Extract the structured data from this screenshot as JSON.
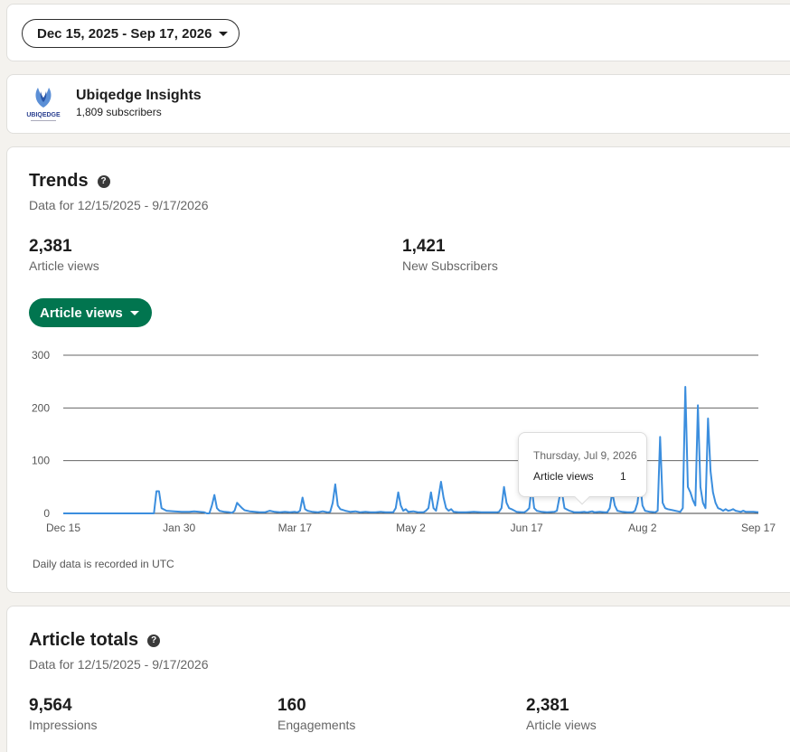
{
  "date_range": {
    "label": "Dec 15, 2025 - Sep 17, 2026"
  },
  "newsletter": {
    "name": "Ubiqedge Insights",
    "subscribers": "1,809 subscribers",
    "logo_text": "UBIQEDGE"
  },
  "trends": {
    "title": "Trends",
    "subtitle": "Data for 12/15/2025 - 9/17/2026",
    "metrics": [
      {
        "value": "2,381",
        "label": "Article views"
      },
      {
        "value": "1,421",
        "label": "New Subscribers"
      }
    ],
    "selector_label": "Article views",
    "note": "Daily data is recorded in UTC",
    "tooltip": {
      "date": "Thursday, Jul 9, 2026",
      "label": "Article views",
      "value": "1"
    }
  },
  "totals": {
    "title": "Article totals",
    "subtitle": "Data for 12/15/2025 - 9/17/2026",
    "metrics": [
      {
        "value": "9,564",
        "label": "Impressions"
      },
      {
        "value": "160",
        "label": "Engagements"
      },
      {
        "value": "2,381",
        "label": "Article views"
      }
    ]
  },
  "colors": {
    "accent_green": "#01754f",
    "line": "#3b8ede"
  },
  "chart_data": {
    "type": "line",
    "x_ticks": [
      "Dec 15",
      "Jan 30",
      "Mar 17",
      "May 2",
      "Jun 17",
      "Aug 2",
      "Sep 17"
    ],
    "y_ticks": [
      "0",
      "100",
      "200",
      "300"
    ],
    "ylim": [
      0,
      300
    ],
    "grid": true,
    "x_days": 276,
    "series": [
      {
        "points": [
          [
            0,
            0
          ],
          [
            10,
            0
          ],
          [
            20,
            0
          ],
          [
            25,
            0
          ],
          [
            30,
            0
          ],
          [
            36,
            0
          ],
          [
            37,
            42
          ],
          [
            38,
            42
          ],
          [
            39,
            10
          ],
          [
            41,
            5
          ],
          [
            44,
            4
          ],
          [
            47,
            3
          ],
          [
            50,
            3
          ],
          [
            52,
            4
          ],
          [
            54,
            3
          ],
          [
            56,
            2
          ],
          [
            57,
            0
          ],
          [
            58,
            0
          ],
          [
            59,
            15
          ],
          [
            60,
            35
          ],
          [
            61,
            10
          ],
          [
            62,
            5
          ],
          [
            64,
            3
          ],
          [
            66,
            2
          ],
          [
            67,
            1
          ],
          [
            68,
            5
          ],
          [
            69,
            20
          ],
          [
            70,
            15
          ],
          [
            71,
            10
          ],
          [
            72,
            6
          ],
          [
            74,
            4
          ],
          [
            76,
            3
          ],
          [
            78,
            2
          ],
          [
            80,
            2
          ],
          [
            82,
            5
          ],
          [
            84,
            3
          ],
          [
            86,
            2
          ],
          [
            88,
            3
          ],
          [
            90,
            2
          ],
          [
            92,
            3
          ],
          [
            93,
            2
          ],
          [
            94,
            5
          ],
          [
            95,
            30
          ],
          [
            96,
            8
          ],
          [
            97,
            5
          ],
          [
            99,
            3
          ],
          [
            101,
            2
          ],
          [
            103,
            4
          ],
          [
            105,
            2
          ],
          [
            106,
            3
          ],
          [
            107,
            20
          ],
          [
            108,
            55
          ],
          [
            109,
            15
          ],
          [
            110,
            8
          ],
          [
            112,
            5
          ],
          [
            114,
            3
          ],
          [
            116,
            4
          ],
          [
            118,
            2
          ],
          [
            120,
            3
          ],
          [
            122,
            2
          ],
          [
            124,
            2
          ],
          [
            126,
            3
          ],
          [
            128,
            2
          ],
          [
            131,
            2
          ],
          [
            132,
            10
          ],
          [
            133,
            40
          ],
          [
            134,
            15
          ],
          [
            135,
            5
          ],
          [
            136,
            8
          ],
          [
            137,
            3
          ],
          [
            139,
            4
          ],
          [
            141,
            2
          ],
          [
            143,
            2
          ],
          [
            144,
            5
          ],
          [
            145,
            10
          ],
          [
            146,
            40
          ],
          [
            147,
            10
          ],
          [
            148,
            5
          ],
          [
            149,
            30
          ],
          [
            150,
            60
          ],
          [
            151,
            30
          ],
          [
            152,
            10
          ],
          [
            153,
            5
          ],
          [
            154,
            8
          ],
          [
            155,
            3
          ],
          [
            157,
            2
          ],
          [
            160,
            2
          ],
          [
            163,
            3
          ],
          [
            166,
            2
          ],
          [
            169,
            2
          ],
          [
            172,
            2
          ],
          [
            173,
            3
          ],
          [
            174,
            10
          ],
          [
            175,
            50
          ],
          [
            176,
            20
          ],
          [
            177,
            10
          ],
          [
            178,
            8
          ],
          [
            180,
            3
          ],
          [
            182,
            2
          ],
          [
            183,
            2
          ],
          [
            184,
            5
          ],
          [
            185,
            10
          ],
          [
            186,
            50
          ],
          [
            187,
            10
          ],
          [
            188,
            5
          ],
          [
            190,
            3
          ],
          [
            192,
            2
          ],
          [
            195,
            3
          ],
          [
            196,
            5
          ],
          [
            197,
            30
          ],
          [
            198,
            40
          ],
          [
            199,
            10
          ],
          [
            201,
            5
          ],
          [
            203,
            2
          ],
          [
            205,
            2
          ],
          [
            207,
            3
          ],
          [
            208,
            2
          ],
          [
            210,
            4
          ],
          [
            211,
            2
          ],
          [
            213,
            3
          ],
          [
            215,
            2
          ],
          [
            216,
            2
          ],
          [
            217,
            10
          ],
          [
            218,
            40
          ],
          [
            219,
            15
          ],
          [
            220,
            5
          ],
          [
            222,
            3
          ],
          [
            224,
            2
          ],
          [
            226,
            2
          ],
          [
            227,
            5
          ],
          [
            228,
            20
          ],
          [
            229,
            60
          ],
          [
            230,
            15
          ],
          [
            231,
            5
          ],
          [
            233,
            3
          ],
          [
            235,
            2
          ],
          [
            236,
            5
          ],
          [
            237,
            145
          ],
          [
            238,
            20
          ],
          [
            239,
            10
          ],
          [
            240,
            8
          ],
          [
            242,
            6
          ],
          [
            244,
            4
          ],
          [
            245,
            3
          ],
          [
            246,
            10
          ],
          [
            247,
            240
          ],
          [
            248,
            50
          ],
          [
            249,
            40
          ],
          [
            250,
            25
          ],
          [
            251,
            15
          ],
          [
            252,
            205
          ],
          [
            253,
            50
          ],
          [
            254,
            20
          ],
          [
            255,
            10
          ],
          [
            256,
            180
          ],
          [
            257,
            80
          ],
          [
            258,
            40
          ],
          [
            259,
            20
          ],
          [
            260,
            10
          ],
          [
            261,
            8
          ],
          [
            262,
            5
          ],
          [
            263,
            8
          ],
          [
            264,
            5
          ],
          [
            265,
            6
          ],
          [
            266,
            8
          ],
          [
            267,
            5
          ],
          [
            268,
            4
          ],
          [
            269,
            3
          ],
          [
            270,
            5
          ],
          [
            271,
            3
          ],
          [
            272,
            3
          ],
          [
            273,
            3
          ],
          [
            274,
            3
          ],
          [
            276,
            2
          ]
        ]
      }
    ]
  }
}
